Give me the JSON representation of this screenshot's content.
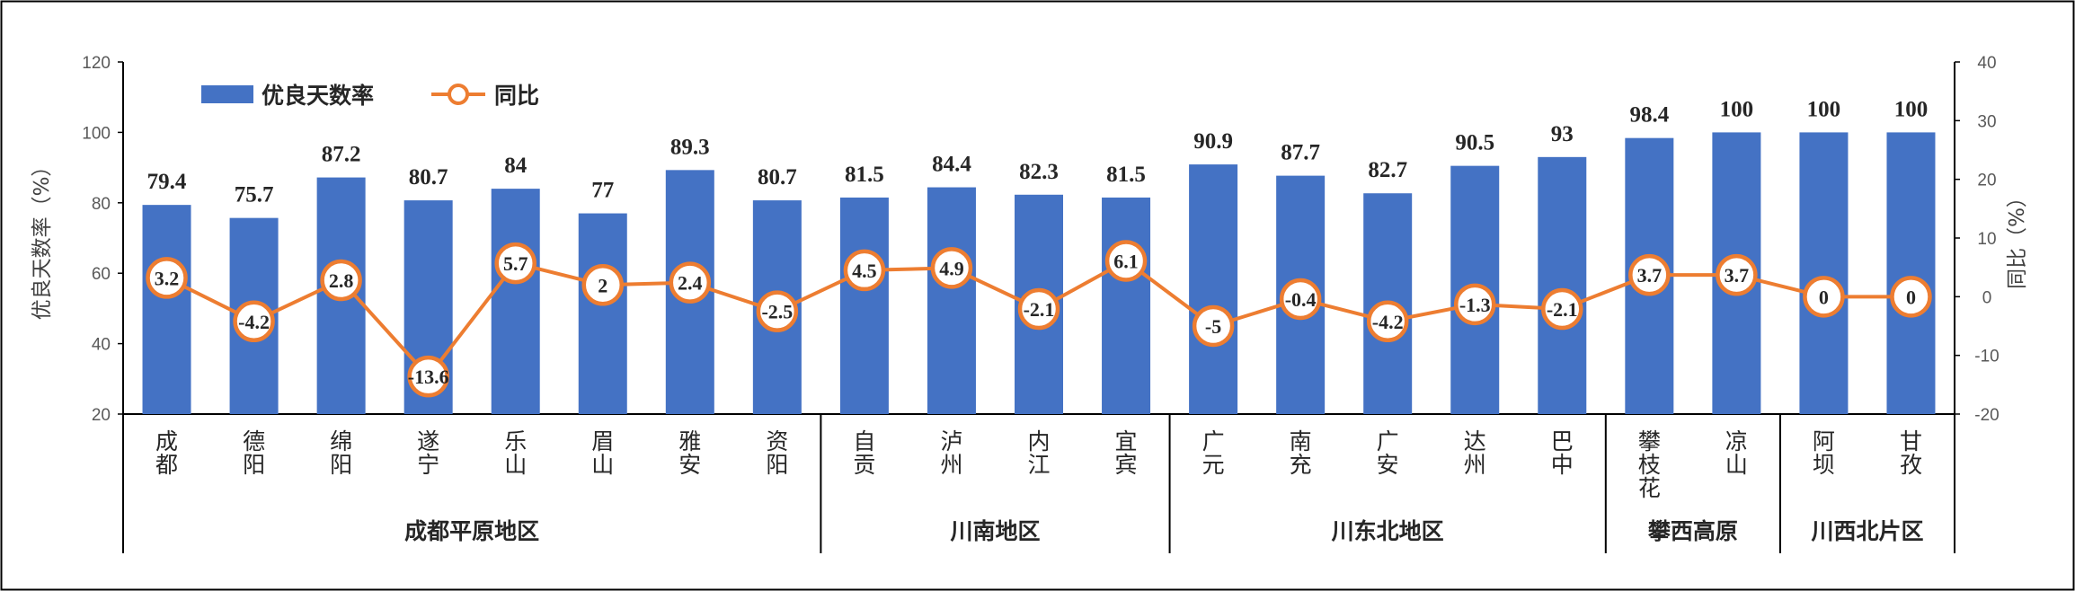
{
  "chart_data": {
    "type": "bar+line",
    "categories": [
      "成都",
      "德阳",
      "绵阳",
      "遂宁",
      "乐山",
      "眉山",
      "雅安",
      "资阳",
      "自贡",
      "泸州",
      "内江",
      "宜宾",
      "广元",
      "南充",
      "广安",
      "达州",
      "巴中",
      "攀枝花",
      "凉山",
      "阿坝",
      "甘孜"
    ],
    "series": [
      {
        "name": "优良天数率",
        "type": "bar",
        "axis": "left",
        "color": "#4472C4",
        "values": [
          79.4,
          75.7,
          87.2,
          80.7,
          84,
          77,
          89.3,
          80.7,
          81.5,
          84.4,
          82.3,
          81.5,
          90.9,
          87.7,
          82.7,
          90.5,
          93,
          98.4,
          100,
          100,
          100
        ]
      },
      {
        "name": "同比",
        "type": "line",
        "axis": "right",
        "color": "#ED7D31",
        "values": [
          3.2,
          -4.2,
          2.8,
          -13.6,
          5.7,
          2,
          2.4,
          -2.5,
          4.5,
          4.9,
          -2.1,
          6.1,
          -5,
          -0.4,
          -4.2,
          -1.3,
          -2.1,
          3.7,
          3.7,
          0,
          0
        ]
      }
    ],
    "groups": [
      {
        "name": "成都平原地区",
        "count": 8
      },
      {
        "name": "川南地区",
        "count": 4
      },
      {
        "name": "川东北地区",
        "count": 5
      },
      {
        "name": "攀西高原",
        "count": 2
      },
      {
        "name": "川西北片区",
        "count": 2
      }
    ],
    "ylabel_left": "优良天数率（%）",
    "ylabel_right": "同比（%）",
    "ylim_left": [
      20,
      120
    ],
    "ylim_right": [
      -20,
      40
    ],
    "yticks_left": [
      20,
      40,
      60,
      80,
      100,
      120
    ],
    "yticks_right": [
      -20,
      -10,
      0,
      10,
      20,
      30,
      40
    ],
    "legend_position": "top-left",
    "grid": false
  }
}
